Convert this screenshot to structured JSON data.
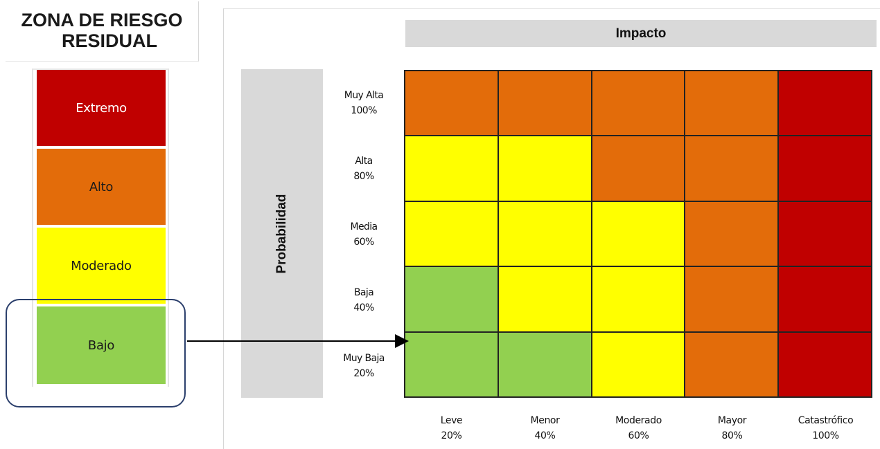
{
  "title": {
    "line1": "ZONA DE RIESGO",
    "line2": "RESIDUAL"
  },
  "legend": [
    {
      "label": "Extremo",
      "color": "#c00000",
      "text_color": "#ffffff"
    },
    {
      "label": "Alto",
      "color": "#e36c0a",
      "text_color": "#1a1a1a"
    },
    {
      "label": "Moderado",
      "color": "#ffff00",
      "text_color": "#1a1a1a"
    },
    {
      "label": "Bajo",
      "color": "#92d050",
      "text_color": "#1a1a1a"
    }
  ],
  "highlighted_level": "Bajo",
  "matrix": {
    "x_header": "Impacto",
    "y_header": "Probabilidad",
    "rows": [
      {
        "label": "Muy Alta",
        "pct": "100%"
      },
      {
        "label": "Alta",
        "pct": "80%"
      },
      {
        "label": "Media",
        "pct": "60%"
      },
      {
        "label": "Baja",
        "pct": "40%"
      },
      {
        "label": "Muy Baja",
        "pct": "20%"
      }
    ],
    "columns": [
      {
        "label": "Leve",
        "pct": "20%"
      },
      {
        "label": "Menor",
        "pct": "40%"
      },
      {
        "label": "Moderado",
        "pct": "60%"
      },
      {
        "label": "Mayor",
        "pct": "80%"
      },
      {
        "label": "Catastrófico",
        "pct": "100%"
      }
    ],
    "cells": [
      [
        "Alto",
        "Alto",
        "Alto",
        "Alto",
        "Extremo"
      ],
      [
        "Moderado",
        "Moderado",
        "Alto",
        "Alto",
        "Extremo"
      ],
      [
        "Moderado",
        "Moderado",
        "Moderado",
        "Alto",
        "Extremo"
      ],
      [
        "Bajo",
        "Moderado",
        "Moderado",
        "Alto",
        "Extremo"
      ],
      [
        "Bajo",
        "Bajo",
        "Moderado",
        "Alto",
        "Extremo"
      ]
    ]
  },
  "arrow": {
    "from": "Bajo",
    "to_cell": "Muy Baja / Leve"
  }
}
